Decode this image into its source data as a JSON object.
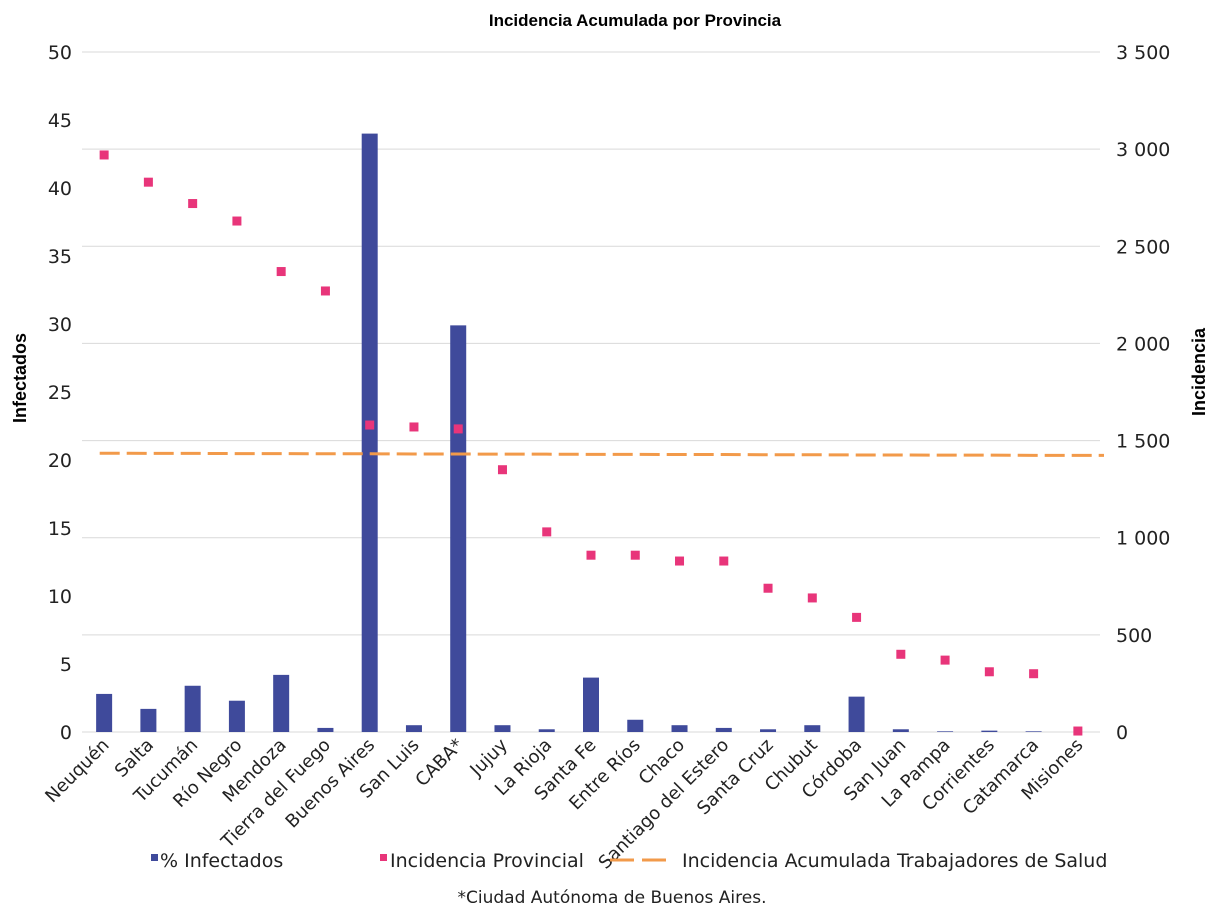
{
  "chart_data": {
    "type": "bar",
    "title": "Incidencia Acumulada por Provincia",
    "ylabel_left": "Infectados",
    "ylabel_right": "Incidencia",
    "ylim_left": [
      0,
      50
    ],
    "ylim_right": [
      0,
      3500
    ],
    "yticks_left": [
      "0",
      "5",
      "10",
      "15",
      "20",
      "25",
      "30",
      "35",
      "40",
      "45",
      "50"
    ],
    "yticks_right": [
      "0",
      "500",
      "1 000",
      "1 500",
      "2 000",
      "2 500",
      "3 000",
      "3 500"
    ],
    "grid": true,
    "legend_position": "bottom",
    "categories": [
      "Neuquén",
      "Salta",
      "Tucumán",
      "Río Negro",
      "Mendoza",
      "Tierra del Fuego",
      "Buenos Aires",
      "San Luis",
      "CABA*",
      "Jujuy",
      "La Rioja",
      "Santa Fe",
      "Entre Ríos",
      "Chaco",
      "Santiago del Estero",
      "Santa Cruz",
      "Chubut",
      "Córdoba",
      "San Juan",
      "La Pampa",
      "Corrientes",
      "Catamarca",
      "Misiones"
    ],
    "series": [
      {
        "name": "% Infectados",
        "kind": "bar",
        "axis": "left",
        "color": "#3f4a9b",
        "values": [
          2.8,
          1.7,
          3.4,
          2.3,
          4.2,
          0.3,
          44.0,
          0.5,
          29.9,
          0.5,
          0.2,
          4.0,
          0.9,
          0.5,
          0.3,
          0.2,
          0.5,
          2.6,
          0.2,
          0.05,
          0.1,
          0.05,
          0.0
        ]
      },
      {
        "name": "Incidencia Provincial",
        "kind": "scatter",
        "axis": "right",
        "color": "#e8357a",
        "values": [
          2970,
          2830,
          2720,
          2630,
          2370,
          2270,
          1580,
          1570,
          1560,
          1350,
          1030,
          910,
          910,
          880,
          880,
          740,
          690,
          590,
          400,
          370,
          310,
          300,
          5
        ]
      },
      {
        "name": "Incidencia Acumulada Trabajadores de Salud",
        "kind": "line-dashed",
        "axis": "right",
        "color": "#f29a4a",
        "values": [
          1435,
          1434,
          1434,
          1433,
          1433,
          1432,
          1432,
          1431,
          1431,
          1430,
          1430,
          1429,
          1429,
          1428,
          1428,
          1427,
          1427,
          1426,
          1426,
          1425,
          1425,
          1424,
          1424
        ]
      }
    ],
    "footnote": "*Ciudad Autónoma de Buenos Aires."
  }
}
